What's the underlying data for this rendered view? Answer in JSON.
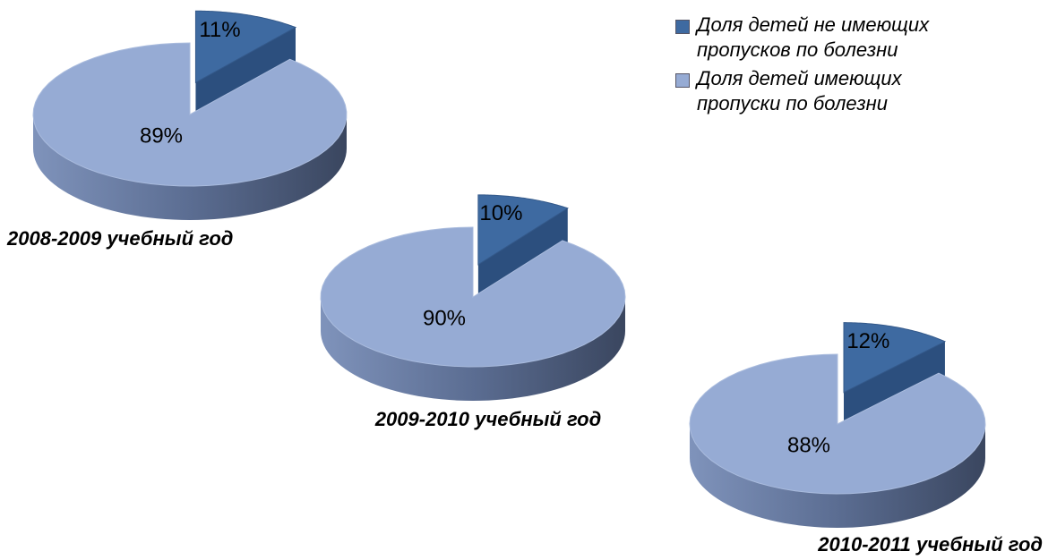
{
  "chart_data": [
    {
      "type": "pie3d",
      "title": "2008-2009 учебный год",
      "categories": [
        "Доля детей не имеющих пропусков по болезни",
        "Доля детей имеющих пропуски по болезни"
      ],
      "values": [
        11,
        89
      ],
      "value_labels": [
        "11%",
        "89%"
      ],
      "colors": [
        "#3e6aa1",
        "#96abd4"
      ]
    },
    {
      "type": "pie3d",
      "title": "2009-2010 учебный год",
      "values": [
        10,
        90
      ],
      "value_labels": [
        "10%",
        "90%"
      ],
      "colors": [
        "#3e6aa1",
        "#96abd4"
      ]
    },
    {
      "type": "pie3d",
      "title": "2010-2011 учебный год",
      "values": [
        12,
        88
      ],
      "value_labels": [
        "12%",
        "88%"
      ],
      "colors": [
        "#3e6aa1",
        "#96abd4"
      ]
    }
  ]
}
